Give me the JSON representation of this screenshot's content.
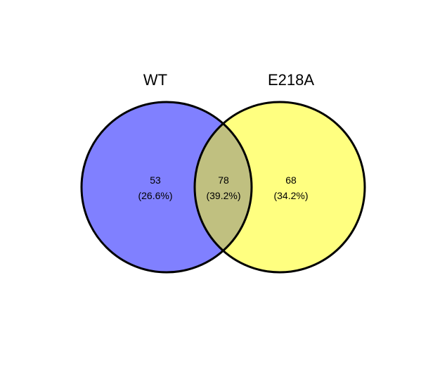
{
  "diagram": {
    "type": "venn",
    "sets": [
      {
        "name": "WT",
        "color": "#8080ff"
      },
      {
        "name": "E218A",
        "color": "#ffff80"
      }
    ],
    "overlap_color": "#c0c080",
    "outline_color": "#000000",
    "regions": [
      {
        "id": "wt-only",
        "count": "53",
        "percent": "(26.6%)"
      },
      {
        "id": "both",
        "count": "78",
        "percent": "(39.2%)"
      },
      {
        "id": "e218a-only",
        "count": "68",
        "percent": "(34.2%)"
      }
    ]
  }
}
